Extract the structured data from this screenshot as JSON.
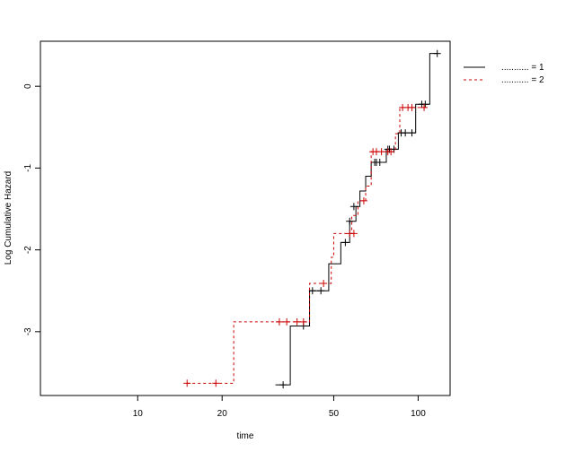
{
  "chart_data": {
    "type": "line",
    "title": "",
    "xlabel": "time",
    "ylabel": "Log Cumulative Hazard",
    "x_scale": "log",
    "xlim": [
      4.5,
      130
    ],
    "ylim": [
      -3.78,
      0.55
    ],
    "x_ticks": [
      10,
      20,
      50,
      100
    ],
    "x_tick_labels": [
      "10",
      "20",
      "50",
      "100"
    ],
    "y_ticks": [
      -3,
      -2,
      -1,
      0
    ],
    "y_tick_labels": [
      "-3",
      "-2",
      "-1",
      "0"
    ],
    "grid": false,
    "legend_position": "top-right",
    "colors": {
      "series1": "#000000",
      "series2": "#cc0000"
    },
    "series": [
      {
        "name": "........... = 1",
        "line_style": "solid",
        "color": "#000000",
        "steps": [
          [
            31,
            -3.65
          ],
          [
            35,
            -2.93
          ],
          [
            41,
            -2.5
          ],
          [
            48,
            -2.17
          ],
          [
            53,
            -1.91
          ],
          [
            57,
            -1.65
          ],
          [
            60,
            -1.47
          ],
          [
            62,
            -1.28
          ],
          [
            65,
            -1.1
          ],
          [
            68,
            -0.93
          ],
          [
            77,
            -0.77
          ],
          [
            85,
            -0.57
          ],
          [
            98,
            -0.22
          ],
          [
            110,
            0.4
          ],
          [
            117,
            0.4
          ]
        ],
        "censored": [
          [
            33,
            -3.65
          ],
          [
            39,
            -2.93
          ],
          [
            42,
            -2.5
          ],
          [
            45,
            -2.5
          ],
          [
            55,
            -1.91
          ],
          [
            57,
            -1.65
          ],
          [
            59,
            -1.47
          ],
          [
            70,
            -0.93
          ],
          [
            71,
            -0.93
          ],
          [
            73,
            -0.93
          ],
          [
            78,
            -0.77
          ],
          [
            79,
            -0.77
          ],
          [
            82,
            -0.77
          ],
          [
            87,
            -0.57
          ],
          [
            90,
            -0.57
          ],
          [
            95,
            -0.57
          ],
          [
            103,
            -0.22
          ],
          [
            106,
            -0.22
          ],
          [
            117,
            0.4
          ]
        ]
      },
      {
        "name": "........... = 2",
        "line_style": "dashed",
        "color": "#cc0000",
        "steps": [
          [
            15,
            -3.63
          ],
          [
            22,
            -2.88
          ],
          [
            41,
            -2.41
          ],
          [
            49,
            -2.09
          ],
          [
            50,
            -1.8
          ],
          [
            58,
            -1.58
          ],
          [
            61,
            -1.4
          ],
          [
            65,
            -1.22
          ],
          [
            68,
            -0.8
          ],
          [
            83,
            -0.58
          ],
          [
            86,
            -0.26
          ],
          [
            107,
            -0.26
          ]
        ],
        "censored": [
          [
            15,
            -3.63
          ],
          [
            19,
            -3.63
          ],
          [
            32,
            -2.88
          ],
          [
            34,
            -2.88
          ],
          [
            37,
            -2.88
          ],
          [
            39,
            -2.88
          ],
          [
            46,
            -2.41
          ],
          [
            57,
            -1.8
          ],
          [
            59,
            -1.8
          ],
          [
            64,
            -1.4
          ],
          [
            69,
            -0.8
          ],
          [
            71,
            -0.8
          ],
          [
            74,
            -0.8
          ],
          [
            78,
            -0.8
          ],
          [
            80,
            -0.8
          ],
          [
            88,
            -0.26
          ],
          [
            92,
            -0.26
          ],
          [
            95,
            -0.26
          ],
          [
            105,
            -0.26
          ]
        ]
      }
    ]
  }
}
